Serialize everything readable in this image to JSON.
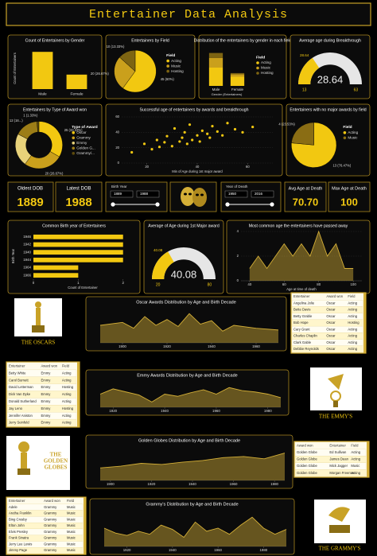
{
  "header": {
    "title": "Entertainer Data Analysis"
  },
  "kpis": [
    {
      "label": "Oldest DOB",
      "value": "1889"
    },
    {
      "label": "Latest DOB",
      "value": "1988"
    },
    {
      "label": "Avg Age at Death",
      "value": "70.70"
    },
    {
      "label": "Max Age at Death",
      "value": "100"
    }
  ],
  "slicers": [
    {
      "label": "Birth Year",
      "from": "1889",
      "to": "1988"
    },
    {
      "label": "Year of Death",
      "from": "1950",
      "to": "2016"
    }
  ],
  "logos": [
    {
      "lines": [
        "THE OSCARS"
      ]
    },
    {
      "lines": [
        "THE EMMY'S"
      ]
    },
    {
      "lines": [
        "THE",
        "GOLDEN",
        "GLOBES"
      ]
    },
    {
      "lines": [
        "THE GRAMMY'S"
      ]
    }
  ],
  "chart_data": [
    {
      "type": "bar",
      "title": "Count of Entertainers by Gender",
      "categories": [
        "Male",
        "Female"
      ],
      "values": [
        54,
        21
      ],
      "color": "#f2c811",
      "ylim": [
        0,
        60
      ],
      "y_label": "Count of Entertainers"
    },
    {
      "type": "pie",
      "title": "Entertainers by Field",
      "legend_title": "Field",
      "categories": [
        "Acting",
        "Music",
        "Hosting"
      ],
      "values": [
        45,
        20,
        10
      ],
      "value_labels": [
        "45 (60%)",
        "20 (26.67%)",
        "10 (13.33%)"
      ],
      "colors": [
        "#f2c811",
        "#caa01c",
        "#7d6412"
      ]
    },
    {
      "type": "stacked",
      "title": "Distribution of the entertainers by gender in each field",
      "legend_title": "Field",
      "x_label": "Gender (Entertainers)",
      "categories": [
        "Male",
        "Female"
      ],
      "ylim": [
        0,
        60
      ],
      "series": [
        {
          "name": "Acting",
          "color": "#f2c811",
          "values": [
            30,
            15
          ]
        },
        {
          "name": "Music",
          "color": "#caa01c",
          "values": [
            16,
            4
          ]
        },
        {
          "name": "Hosting",
          "color": "#7d6412",
          "values": [
            8,
            2
          ]
        }
      ]
    },
    {
      "type": "gauge",
      "title": "Average age during Breakthrough",
      "value": 28.64,
      "ylim": [
        13,
        63
      ],
      "color": "#f2c811"
    },
    {
      "type": "pie",
      "hole": true,
      "title": "Entertainers by Type of Award won",
      "legend_title": "Type of Award",
      "categories": [
        "Oscar",
        "Grammy",
        "Emmy",
        "Golden G...",
        "Grammy/..."
      ],
      "values": [
        25,
        20,
        17,
        12,
        1
      ],
      "value_labels": [
        "25 (33.33%)",
        "20 (26.67%)",
        null,
        "12 (16...)",
        "1 (1.33%)"
      ],
      "colors": [
        "#f2c811",
        "#caa01c",
        "#e8d27a",
        "#9c7d17",
        "#5e4b0c"
      ]
    },
    {
      "type": "scatter",
      "title": "Successful age of entertainers by awards and breakthrough",
      "x_label": "Min of Age during 1st major award",
      "color": "#f2c811",
      "xlim": [
        10,
        70
      ],
      "xticks": [
        20,
        40,
        60
      ],
      "ylim": [
        0,
        60
      ],
      "yticks": [
        0,
        20,
        40,
        60
      ],
      "x": [
        14,
        19,
        22,
        24,
        25,
        27,
        28,
        30,
        31,
        33,
        34,
        35,
        36,
        37,
        38,
        40,
        41,
        42,
        44,
        45,
        46,
        48,
        50,
        52,
        55,
        58,
        62
      ],
      "values": [
        14,
        25,
        18,
        30,
        21,
        27,
        35,
        22,
        45,
        28,
        33,
        40,
        25,
        50,
        30,
        36,
        28,
        42,
        38,
        33,
        48,
        41,
        36,
        52,
        44,
        40,
        47
      ]
    },
    {
      "type": "pie",
      "title": "Entertainers with no major awards by field",
      "legend_title": "Field",
      "categories": [
        "Acting",
        "Music"
      ],
      "values": [
        13,
        4
      ],
      "value_labels": [
        "13 (76.47%)",
        "4 (23.53%)"
      ],
      "colors": [
        "#f2c811",
        "#8a6d14"
      ]
    },
    {
      "type": "hbar",
      "title": "Common Birth year of Entertainers",
      "x_label": "Count of Entertainer",
      "y_label": "Birth Year",
      "categories": [
        "1946",
        "1942",
        "1940",
        "1944",
        "1964",
        "1966"
      ],
      "values": [
        2,
        2,
        2,
        2,
        1,
        1
      ],
      "color": "#f2c811",
      "xlim": [
        0,
        2.2
      ],
      "xticks": [
        0,
        1,
        2
      ]
    },
    {
      "type": "gauge",
      "title": "Average of Age during 1st Major award",
      "value": 40.08,
      "ylim": [
        20,
        80
      ],
      "color": "#f2c811"
    },
    {
      "type": "area",
      "title": "Most common age the entertainers have passed away",
      "x_label": "Age at time of death",
      "color": "#d4af37",
      "xlim": [
        35,
        105
      ],
      "xticks": [
        40,
        60,
        80,
        100
      ],
      "ylim": [
        0,
        4
      ],
      "yticks": [
        0,
        2,
        4
      ],
      "x": [
        40,
        45,
        50,
        55,
        60,
        65,
        70,
        75,
        80,
        85,
        90,
        95,
        100
      ],
      "values": [
        1,
        2,
        1,
        2,
        3,
        2,
        3,
        2,
        4,
        2,
        3,
        1,
        1
      ]
    },
    {
      "type": "area",
      "title": "Oscar Awards Distribution by Age and Birth Decade",
      "color": "#d4af37",
      "xlim": [
        1890,
        1970
      ],
      "xticks": [
        1900,
        1920,
        1940,
        1960
      ],
      "ylim": [
        0,
        60
      ],
      "x": [
        1890,
        1900,
        1905,
        1910,
        1915,
        1920,
        1925,
        1930,
        1935,
        1940,
        1945,
        1950,
        1960,
        1970
      ],
      "values": [
        30,
        35,
        25,
        45,
        30,
        40,
        28,
        50,
        32,
        38,
        20,
        30,
        25,
        22
      ]
    },
    {
      "type": "area",
      "title": "Emmy Awards Distribution by Age and Birth Decade",
      "color": "#d4af37",
      "xlim": [
        1915,
        1985
      ],
      "xticks": [
        1920,
        1940,
        1960,
        1980
      ],
      "ylim": [
        0,
        60
      ],
      "x": [
        1915,
        1920,
        1925,
        1930,
        1935,
        1940,
        1945,
        1950,
        1955,
        1960,
        1965,
        1970,
        1975,
        1980,
        1985
      ],
      "values": [
        30,
        42,
        35,
        28,
        12,
        30,
        25,
        33,
        40,
        30,
        45,
        38,
        35,
        30,
        22
      ]
    },
    {
      "type": "area",
      "title": "Golden Globes Distribution by Age and Birth Decade",
      "color": "#d4af37",
      "xlim": [
        1895,
        1985
      ],
      "xticks": [
        1900,
        1920,
        1940,
        1960,
        1980
      ],
      "ylim": [
        0,
        60
      ],
      "x": [
        1895,
        1905,
        1915,
        1925,
        1935,
        1945,
        1955,
        1965,
        1975,
        1985
      ],
      "values": [
        22,
        25,
        30,
        28,
        32,
        35,
        40,
        42,
        38,
        48
      ]
    },
    {
      "type": "area",
      "title": "Grammy's Distribution by Age and Birth Decade",
      "color": "#d4af37",
      "xlim": [
        1910,
        1990
      ],
      "xticks": [
        1920,
        1940,
        1960,
        1980
      ],
      "ylim": [
        0,
        60
      ],
      "x": [
        1910,
        1915,
        1920,
        1925,
        1930,
        1935,
        1940,
        1945,
        1950,
        1955,
        1960,
        1965,
        1970,
        1975,
        1980,
        1985,
        1990
      ],
      "values": [
        30,
        22,
        18,
        25,
        20,
        35,
        28,
        15,
        40,
        25,
        30,
        20,
        35,
        48,
        30,
        20,
        28
      ]
    }
  ],
  "tables": [
    {
      "headers": [
        "Entertainer",
        "Award won",
        "Field"
      ],
      "rows": [
        [
          "Angelina Jolie",
          "Oscar",
          "Acting"
        ],
        [
          "Bette Davis",
          "Oscar",
          "Acting"
        ],
        [
          "Betty Grable",
          "Oscar",
          "Acting"
        ],
        [
          "Bob Hope",
          "Oscar",
          "Hosting"
        ],
        [
          "Cary Grant",
          "Oscar",
          "Acting"
        ],
        [
          "Charles Chaplin",
          "Oscar",
          "Acting"
        ],
        [
          "Clark Gable",
          "Oscar",
          "Acting"
        ],
        [
          "Debbie Reynolds",
          "Oscar",
          "Acting"
        ]
      ]
    },
    {
      "headers": [
        "Entertainer",
        "Award won",
        "Field"
      ],
      "rows": [
        [
          "Betty White",
          "Emmy",
          "Acting"
        ],
        [
          "Carol Burnett",
          "Emmy",
          "Acting"
        ],
        [
          "David Letterman",
          "Emmy",
          "Hosting"
        ],
        [
          "Dick Van Dyke",
          "Emmy",
          "Acting"
        ],
        [
          "Donald Sutherland",
          "Emmy",
          "Acting"
        ],
        [
          "Jay Leno",
          "Emmy",
          "Hosting"
        ],
        [
          "Jennifer Aniston",
          "Emmy",
          "Acting"
        ],
        [
          "Jerry Seinfeld",
          "Emmy",
          "Acting"
        ]
      ]
    },
    {
      "headers": [
        "Award won",
        "Entertainer",
        "Field"
      ],
      "rows": [
        [
          "Golden Globe",
          "Ed Sullivan",
          "Acting"
        ],
        [
          "Golden Globe",
          "James Dean",
          "Acting"
        ],
        [
          "Golden Globe",
          "Mick Jagger",
          "Music"
        ],
        [
          "Golden Globe",
          "Morgan Freeman",
          "Acting"
        ]
      ]
    },
    {
      "headers": [
        "Entertainer",
        "Award won",
        "Field"
      ],
      "rows": [
        [
          "Adele",
          "Grammy",
          "Music"
        ],
        [
          "Aretha Franklin",
          "Grammy",
          "Music"
        ],
        [
          "Bing Crosby",
          "Grammy",
          "Music"
        ],
        [
          "Elton John",
          "Grammy",
          "Music"
        ],
        [
          "Elvis Presley",
          "Grammy",
          "Music"
        ],
        [
          "Frank Sinatra",
          "Grammy",
          "Music"
        ],
        [
          "Jerry Lee Lewis",
          "Grammy",
          "Music"
        ],
        [
          "Jimmy Page",
          "Grammy",
          "Music"
        ]
      ]
    }
  ]
}
